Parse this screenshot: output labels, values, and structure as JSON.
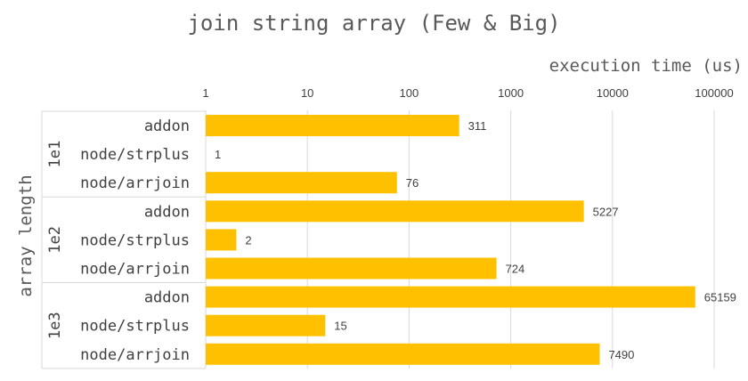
{
  "chart_data": {
    "type": "bar",
    "orientation": "horizontal",
    "title": "join string array (Few & Big)",
    "xlabel": "execution time (us)",
    "ylabel": "array length",
    "x_scale": "log",
    "xlim": [
      1,
      100000
    ],
    "x_ticks": [
      "1",
      "10",
      "100",
      "1000",
      "10000",
      "100000"
    ],
    "x_tick_values": [
      1,
      10,
      100,
      1000,
      10000,
      100000
    ],
    "x_axis_position": "top",
    "grid": true,
    "bar_color": "#FFC000",
    "groups": [
      {
        "label": "1e1",
        "bars": [
          {
            "category": "addon",
            "value": 311,
            "value_label": "311"
          },
          {
            "category": "node/strplus",
            "value": 1,
            "value_label": "1"
          },
          {
            "category": "node/arrjoin",
            "value": 76,
            "value_label": "76"
          }
        ]
      },
      {
        "label": "1e2",
        "bars": [
          {
            "category": "addon",
            "value": 5227,
            "value_label": "5227"
          },
          {
            "category": "node/strplus",
            "value": 2,
            "value_label": "2"
          },
          {
            "category": "node/arrjoin",
            "value": 724,
            "value_label": "724"
          }
        ]
      },
      {
        "label": "1e3",
        "bars": [
          {
            "category": "addon",
            "value": 65159,
            "value_label": "65159"
          },
          {
            "category": "node/strplus",
            "value": 15,
            "value_label": "15"
          },
          {
            "category": "node/arrjoin",
            "value": 7490,
            "value_label": "7490"
          }
        ]
      }
    ]
  }
}
